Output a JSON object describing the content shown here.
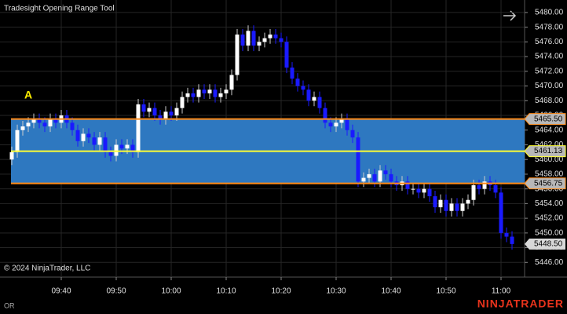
{
  "chart_data": {
    "type": "candlestick",
    "title": "Tradesight Opening Range Tool",
    "copyright": "© 2024 NinjaTrader, LLC",
    "footer_left": "OR",
    "brand": "NINJATRADER",
    "x": [
      "09:31",
      "09:32",
      "09:33",
      "09:34",
      "09:35",
      "09:36",
      "09:37",
      "09:38",
      "09:39",
      "09:40",
      "09:41",
      "09:42",
      "09:43",
      "09:44",
      "09:45",
      "09:46",
      "09:47",
      "09:48",
      "09:49",
      "09:50",
      "09:51",
      "09:52",
      "09:53",
      "09:54",
      "09:55",
      "09:56",
      "09:57",
      "09:58",
      "09:59",
      "10:00",
      "10:01",
      "10:02",
      "10:03",
      "10:04",
      "10:05",
      "10:06",
      "10:07",
      "10:08",
      "10:09",
      "10:10",
      "10:11",
      "10:12",
      "10:13",
      "10:14",
      "10:15",
      "10:16",
      "10:17",
      "10:18",
      "10:19",
      "10:20",
      "10:21",
      "10:22",
      "10:23",
      "10:24",
      "10:25",
      "10:26",
      "10:27",
      "10:28",
      "10:29",
      "10:30",
      "10:31",
      "10:32",
      "10:33",
      "10:34",
      "10:35",
      "10:36",
      "10:37",
      "10:38",
      "10:39",
      "10:40",
      "10:41",
      "10:42",
      "10:43",
      "10:44",
      "10:45",
      "10:46",
      "10:47",
      "10:48",
      "10:49",
      "10:50",
      "10:51",
      "10:52",
      "10:53",
      "10:54",
      "10:55",
      "10:56",
      "10:57",
      "10:58",
      "10:59",
      "11:00",
      "11:01",
      "11:02"
    ],
    "open": [
      5460,
      5461,
      5464,
      5464.5,
      5465,
      5465.5,
      5465,
      5464.5,
      5465.5,
      5465,
      5466,
      5465,
      5464,
      5462.5,
      5463.5,
      5463,
      5462,
      5463,
      5461,
      5460.5,
      5462,
      5461.5,
      5462,
      5461,
      5467.5,
      5466.5,
      5467,
      5466,
      5465.5,
      5466.5,
      5466,
      5467,
      5468.5,
      5469,
      5468.5,
      5469.5,
      5469,
      5469.5,
      5468.5,
      5469,
      5469.5,
      5471.5,
      5477,
      5475.5,
      5477.5,
      5475.5,
      5476,
      5476.5,
      5477,
      5476.5,
      5476,
      5472.5,
      5471,
      5470,
      5469.5,
      5468,
      5468.5,
      5467,
      5465,
      5464.5,
      5465,
      5465.5,
      5464,
      5463,
      5457,
      5457.5,
      5458,
      5457,
      5458.5,
      5458,
      5457,
      5456.5,
      5457,
      5456,
      5456,
      5455.5,
      5456,
      5455,
      5453.5,
      5454.5,
      5453,
      5454,
      5453,
      5454,
      5454.5,
      5456.5,
      5456,
      5457,
      5456.5,
      5455.5,
      5450,
      5449.5
    ],
    "high": [
      5461.75,
      5464.75,
      5465.25,
      5465.75,
      5466.25,
      5466.25,
      5465.75,
      5466.25,
      5466.25,
      5466.75,
      5466.75,
      5465.75,
      5464.75,
      5464.25,
      5464.25,
      5463.75,
      5463.75,
      5463.75,
      5461.75,
      5462.75,
      5462.75,
      5462.75,
      5462.75,
      5468.25,
      5468.25,
      5467.75,
      5467.75,
      5466.75,
      5467.25,
      5467.25,
      5467.75,
      5469.25,
      5469.75,
      5469.75,
      5470.25,
      5470.25,
      5470.25,
      5470.25,
      5469.75,
      5470.25,
      5472.25,
      5477.75,
      5477.75,
      5478.25,
      5478.25,
      5476.75,
      5477.25,
      5477.75,
      5477.75,
      5477.25,
      5476.75,
      5473.25,
      5471.75,
      5470.75,
      5470.25,
      5469.25,
      5469.25,
      5467.75,
      5465.75,
      5465.75,
      5466.25,
      5466.25,
      5464.75,
      5463.75,
      5458.25,
      5458.75,
      5458.75,
      5459.25,
      5459.25,
      5458.75,
      5457.75,
      5457.75,
      5457.75,
      5456.75,
      5456.75,
      5456.75,
      5456.75,
      5455.75,
      5455.25,
      5455.25,
      5454.75,
      5454.75,
      5454.75,
      5455.25,
      5457.25,
      5457.25,
      5457.75,
      5457.75,
      5457.25,
      5456.25,
      5450.75,
      5450.25
    ],
    "low": [
      5459.25,
      5460.25,
      5463.25,
      5463.75,
      5464.25,
      5464.25,
      5463.75,
      5463.75,
      5464.25,
      5464.25,
      5464.25,
      5463.25,
      5461.75,
      5461.75,
      5462.25,
      5461.25,
      5461.25,
      5460.25,
      5459.75,
      5459.75,
      5460.75,
      5460.75,
      5460.25,
      5460.25,
      5465.75,
      5465.75,
      5465.25,
      5464.75,
      5464.75,
      5465.25,
      5465.25,
      5466.25,
      5467.75,
      5467.75,
      5467.75,
      5468.25,
      5468.25,
      5467.75,
      5467.75,
      5468.25,
      5468.75,
      5470.75,
      5474.75,
      5474.75,
      5474.75,
      5474.75,
      5475.25,
      5475.75,
      5475.75,
      5475.25,
      5471.75,
      5470.25,
      5469.25,
      5468.75,
      5467.25,
      5467.25,
      5466.25,
      5464.25,
      5463.75,
      5463.75,
      5464.25,
      5463.25,
      5462.25,
      5456.25,
      5456.25,
      5456.75,
      5456.25,
      5456.25,
      5457.25,
      5456.25,
      5455.75,
      5455.75,
      5455.25,
      5455.25,
      5454.75,
      5454.75,
      5454.25,
      5452.75,
      5452.75,
      5452.25,
      5452.25,
      5452.25,
      5452.25,
      5453.25,
      5453.75,
      5455.25,
      5455.25,
      5455.75,
      5454.75,
      5449.25,
      5448.75,
      5447.75
    ],
    "close": [
      5461,
      5464,
      5464.5,
      5465,
      5465.5,
      5465,
      5464.5,
      5465.5,
      5465,
      5466,
      5465,
      5464,
      5462.5,
      5463.5,
      5463,
      5462,
      5463,
      5461,
      5460.5,
      5462,
      5461.5,
      5462,
      5461,
      5467.5,
      5466.5,
      5467,
      5466,
      5465.5,
      5466.5,
      5466,
      5467,
      5468.5,
      5469,
      5468.5,
      5469.5,
      5469,
      5469.5,
      5468.5,
      5469,
      5469.5,
      5471.5,
      5477,
      5475.5,
      5477.5,
      5475.5,
      5476,
      5476.5,
      5477,
      5476.5,
      5476,
      5472.5,
      5471,
      5470,
      5469.5,
      5468,
      5468.5,
      5467,
      5465,
      5464.5,
      5465,
      5465.5,
      5464,
      5463,
      5457,
      5457.5,
      5458,
      5457,
      5458.5,
      5458,
      5457,
      5456.5,
      5457,
      5456,
      5456,
      5455.5,
      5456,
      5455,
      5453.5,
      5454.5,
      5453,
      5454,
      5453,
      5454,
      5454.5,
      5456.5,
      5456,
      5457,
      5456.5,
      5455.5,
      5450,
      5449.5,
      5448.5
    ],
    "up_color": "#ffffff",
    "down_color": "#1a1aff",
    "xticks": [
      "09:40",
      "09:50",
      "10:00",
      "10:10",
      "10:20",
      "10:30",
      "10:40",
      "10:50",
      "11:00"
    ],
    "ylim": [
      5444,
      5481.7
    ],
    "yticks": [
      {
        "value": 5446,
        "label": "5446.00"
      },
      {
        "value": 5448,
        "label": "5448.00"
      },
      {
        "value": 5450,
        "label": "5450.00"
      },
      {
        "value": 5452,
        "label": "5452.00"
      },
      {
        "value": 5454,
        "label": "5454.00"
      },
      {
        "value": 5456,
        "label": "5456.00"
      },
      {
        "value": 5458,
        "label": "5458.00"
      },
      {
        "value": 5460,
        "label": "5460.00"
      },
      {
        "value": 5462,
        "label": "5462.00"
      },
      {
        "value": 5464,
        "label": "5464.00"
      },
      {
        "value": 5466,
        "label": "5466.00"
      },
      {
        "value": 5468,
        "label": "5468.00"
      },
      {
        "value": 5470,
        "label": "5470.00"
      },
      {
        "value": 5472,
        "label": "5472.00"
      },
      {
        "value": 5474,
        "label": "5474.00"
      },
      {
        "value": 5476,
        "label": "5476.00"
      },
      {
        "value": 5478,
        "label": "5478.00"
      },
      {
        "value": 5480,
        "label": "5480.00"
      }
    ],
    "grid": true,
    "opening_range": {
      "band_color": "#2e78c0",
      "edge_color": "#ff8c1a",
      "mid_color": "#ffff33",
      "high": {
        "value": 5465.5,
        "label": "5465.50"
      },
      "mid": {
        "value": 5461.13,
        "label": "5461.13"
      },
      "low": {
        "value": 5456.75,
        "label": "5456.75"
      }
    },
    "last_price": {
      "value": 5448.5,
      "label": "5448.50"
    },
    "annotations": [
      {
        "text": "A",
        "x": "09:34",
        "y": 5468.7,
        "color": "#ffee00"
      }
    ]
  }
}
